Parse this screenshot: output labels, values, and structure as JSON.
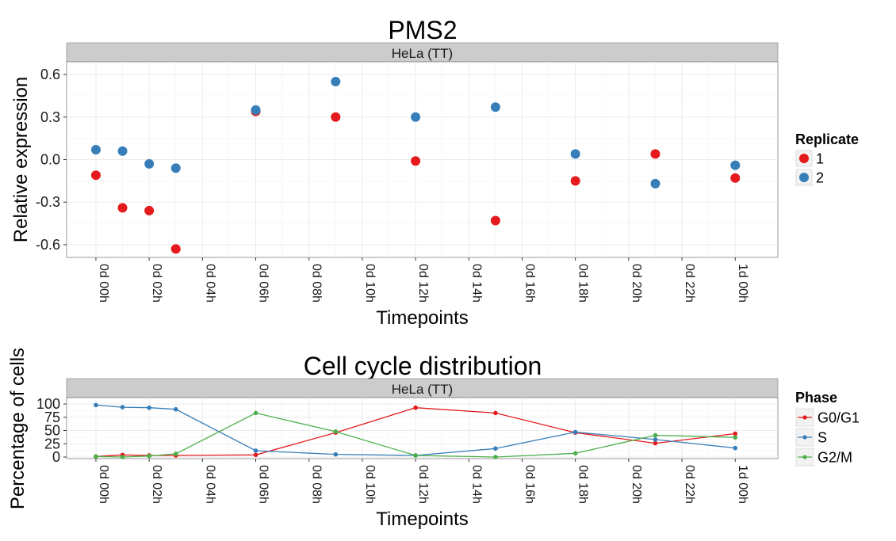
{
  "x_ticks": [
    "0d 00h",
    "0d 02h",
    "0d 04h",
    "0d 06h",
    "0d 08h",
    "0d 10h",
    "0d 12h",
    "0d 14h",
    "0d 16h",
    "0d 18h",
    "0d 20h",
    "0d 22h",
    "1d 00h"
  ],
  "chart_data": [
    {
      "type": "scatter",
      "title": "PMS2",
      "facet_label": "HeLa (TT)",
      "xlabel": "Timepoints",
      "ylabel": "Relative expression",
      "x_unit": "hours",
      "xlim": [
        -1.1,
        25.6
      ],
      "ylim": [
        -0.69,
        0.69
      ],
      "yticks": [
        "0.6",
        "0.3",
        "0.0",
        "-0.3",
        "-0.6"
      ],
      "ytick_values": [
        0.6,
        0.3,
        0.0,
        -0.3,
        -0.6
      ],
      "grid": true,
      "legend": {
        "title": "Replicate",
        "position": "right"
      },
      "series": [
        {
          "name": "1",
          "color": "#E41A1C",
          "x": [
            0,
            1,
            2,
            3,
            6,
            9,
            12,
            15,
            18,
            21,
            24
          ],
          "y": [
            -0.11,
            -0.34,
            -0.36,
            -0.63,
            0.34,
            0.3,
            -0.01,
            -0.43,
            -0.15,
            0.04,
            -0.13
          ]
        },
        {
          "name": "2",
          "color": "#377EB8",
          "x": [
            0,
            1,
            2,
            3,
            6,
            9,
            12,
            15,
            18,
            21,
            24
          ],
          "y": [
            0.07,
            0.06,
            -0.03,
            -0.06,
            0.35,
            0.55,
            0.3,
            0.37,
            0.04,
            -0.17,
            -0.04
          ]
        }
      ]
    },
    {
      "type": "line",
      "title": "Cell cycle distribution",
      "facet_label": "HeLa (TT)",
      "xlabel": "Timepoints",
      "ylabel": "Percentage of cells",
      "x_unit": "hours",
      "xlim": [
        -1.1,
        25.6
      ],
      "ylim": [
        -3,
        112
      ],
      "yticks": [
        "100",
        "75",
        "50",
        "25",
        "0"
      ],
      "ytick_values": [
        100,
        75,
        50,
        25,
        0
      ],
      "grid": true,
      "legend": {
        "title": "Phase",
        "position": "right"
      },
      "series": [
        {
          "name": "G0/G1",
          "color": "#E41A1C",
          "x": [
            0,
            1,
            2,
            3,
            6,
            9,
            12,
            15,
            18,
            21,
            24
          ],
          "y": [
            1,
            4,
            3,
            3,
            4,
            46,
            93,
            83,
            46,
            26,
            44
          ]
        },
        {
          "name": "S",
          "color": "#377EB8",
          "x": [
            0,
            1,
            2,
            3,
            6,
            9,
            12,
            15,
            18,
            21,
            24
          ],
          "y": [
            98,
            94,
            93,
            90,
            12,
            5,
            3,
            16,
            47,
            33,
            17
          ]
        },
        {
          "name": "G2/M",
          "color": "#4DAF4A",
          "x": [
            0,
            1,
            2,
            3,
            6,
            9,
            12,
            15,
            18,
            21,
            24
          ],
          "y": [
            1,
            0,
            2,
            6,
            83,
            48,
            3,
            0,
            7,
            41,
            37
          ]
        }
      ]
    }
  ]
}
